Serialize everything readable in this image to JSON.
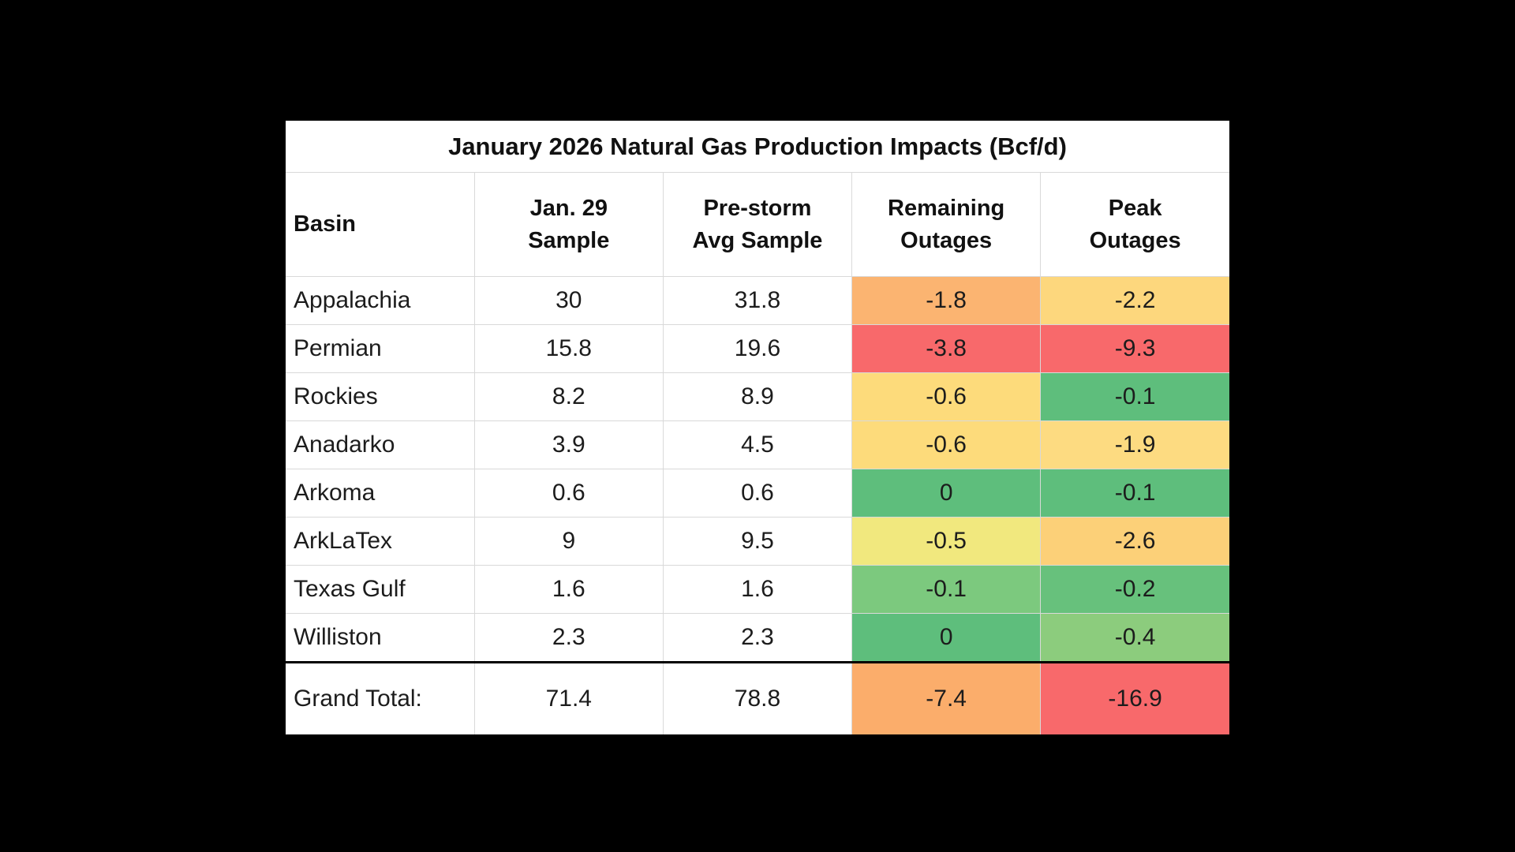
{
  "page": {
    "background": "#000000"
  },
  "table": {
    "title": "January 2026 Natural Gas Production Impacts (Bcf/d)",
    "headers": {
      "basin": "Basin",
      "jan29_line1": "Jan. 29",
      "jan29_line2": "Sample",
      "prestorm_line1": "Pre-storm",
      "prestorm_line2": "Avg Sample",
      "remaining_line1": "Remaining",
      "remaining_line2": "Outages",
      "peak_line1": "Peak",
      "peak_line2": "Outages"
    },
    "rows": [
      {
        "basin": "Appalachia",
        "jan29": "30",
        "prestorm": "31.8",
        "remaining": "-1.8",
        "peak": "-2.2",
        "remaining_bg": "#FBB471",
        "peak_bg": "#FDD77D"
      },
      {
        "basin": "Permian",
        "jan29": "15.8",
        "prestorm": "19.6",
        "remaining": "-3.8",
        "peak": "-9.3",
        "remaining_bg": "#F8696B",
        "peak_bg": "#F8696B"
      },
      {
        "basin": "Rockies",
        "jan29": "8.2",
        "prestorm": "8.9",
        "remaining": "-0.6",
        "peak": "-0.1",
        "remaining_bg": "#FDDB7B",
        "peak_bg": "#5EBE7C"
      },
      {
        "basin": "Anadarko",
        "jan29": "3.9",
        "prestorm": "4.5",
        "remaining": "-0.6",
        "peak": "-1.9",
        "remaining_bg": "#FDDB7B",
        "peak_bg": "#FDDB81"
      },
      {
        "basin": "Arkoma",
        "jan29": "0.6",
        "prestorm": "0.6",
        "remaining": "0",
        "peak": "-0.1",
        "remaining_bg": "#5EBE7C",
        "peak_bg": "#5EBE7C"
      },
      {
        "basin": "ArkLaTex",
        "jan29": "9",
        "prestorm": "9.5",
        "remaining": "-0.5",
        "peak": "-2.6",
        "remaining_bg": "#F1E87E",
        "peak_bg": "#FCD078"
      },
      {
        "basin": "Texas Gulf",
        "jan29": "1.6",
        "prestorm": "1.6",
        "remaining": "-0.1",
        "peak": "-0.2",
        "remaining_bg": "#7CC97E",
        "peak_bg": "#67C17C"
      },
      {
        "basin": "Williston",
        "jan29": "2.3",
        "prestorm": "2.3",
        "remaining": "0",
        "peak": "-0.4",
        "remaining_bg": "#5EBE7C",
        "peak_bg": "#8CCC7D"
      }
    ],
    "total": {
      "label": "Grand Total:",
      "jan29": "71.4",
      "prestorm": "78.8",
      "remaining": "-7.4",
      "peak": "-16.9",
      "remaining_bg": "#FBAD6B",
      "peak_bg": "#F8696B"
    }
  },
  "colors": {
    "scale_red": "#F8696B",
    "scale_yellow": "#FDDB7B",
    "scale_green": "#5EBE7C",
    "grid_line": "#D9D9D9",
    "separator_thick": "#000000"
  },
  "chart_data": {
    "type": "table",
    "title": "January 2026 Natural Gas Production Impacts (Bcf/d)",
    "columns": [
      "Basin",
      "Jan. 29 Sample",
      "Pre-storm Avg Sample",
      "Remaining Outages",
      "Peak Outages"
    ],
    "rows": [
      [
        "Appalachia",
        30,
        31.8,
        -1.8,
        -2.2
      ],
      [
        "Permian",
        15.8,
        19.6,
        -3.8,
        -9.3
      ],
      [
        "Rockies",
        8.2,
        8.9,
        -0.6,
        -0.1
      ],
      [
        "Anadarko",
        3.9,
        4.5,
        -0.6,
        -1.9
      ],
      [
        "Arkoma",
        0.6,
        0.6,
        0,
        -0.1
      ],
      [
        "ArkLaTex",
        9,
        9.5,
        -0.5,
        -2.6
      ],
      [
        "Texas Gulf",
        1.6,
        1.6,
        -0.1,
        -0.2
      ],
      [
        "Williston",
        2.3,
        2.3,
        0,
        -0.4
      ]
    ],
    "totals_row": [
      "Grand Total:",
      71.4,
      78.8,
      -7.4,
      -16.9
    ],
    "notes": "Remaining Outages and Peak Outages cells use a red-yellow-green conditional color scale"
  }
}
